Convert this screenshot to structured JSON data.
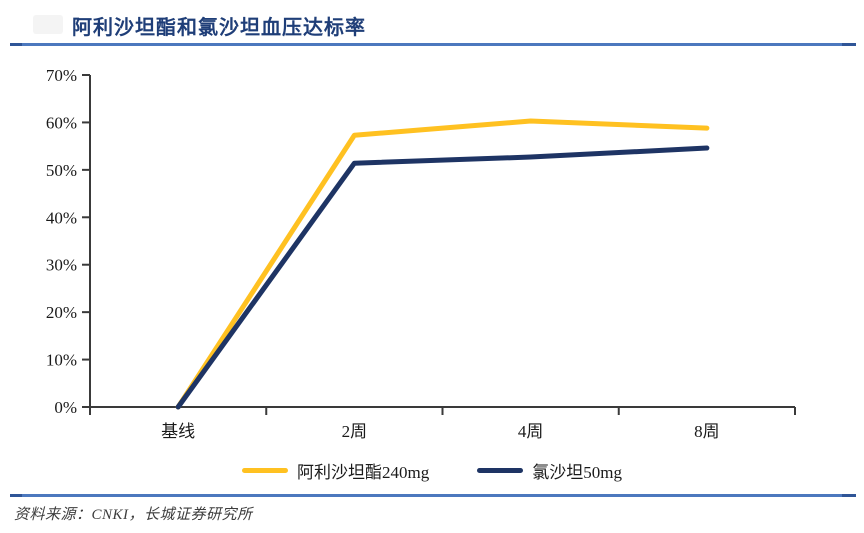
{
  "title": "阿利沙坦酯和氯沙坦血压达标率",
  "source_note": "资料来源：CNKI，长城证券研究所",
  "colors": {
    "accent_rule": "#4C78BE",
    "accent_rule_ends": "#2F5597",
    "title_text": "#1F3E78",
    "axis": "#3a3a3a",
    "tick_label": "#1a1a1a"
  },
  "chart_data": {
    "type": "line",
    "title": "阿利沙坦酯和氯沙坦血压达标率",
    "categories": [
      "基线",
      "2周",
      "4周",
      "8周"
    ],
    "series": [
      {
        "name": "阿利沙坦酯240mg",
        "color": "#FFC121",
        "values": [
          0,
          57.3,
          60.3,
          58.8
        ]
      },
      {
        "name": "氯沙坦50mg",
        "color": "#1E3464",
        "values": [
          0,
          51.4,
          52.7,
          54.6
        ]
      }
    ],
    "xlabel": "",
    "ylabel": "",
    "ylim": [
      0,
      70
    ],
    "ytick_step": 10,
    "ytick_labels": [
      "0%",
      "10%",
      "20%",
      "30%",
      "40%",
      "50%",
      "60%",
      "70%"
    ],
    "grid": false,
    "legend_position": "bottom",
    "line_width": 5
  }
}
